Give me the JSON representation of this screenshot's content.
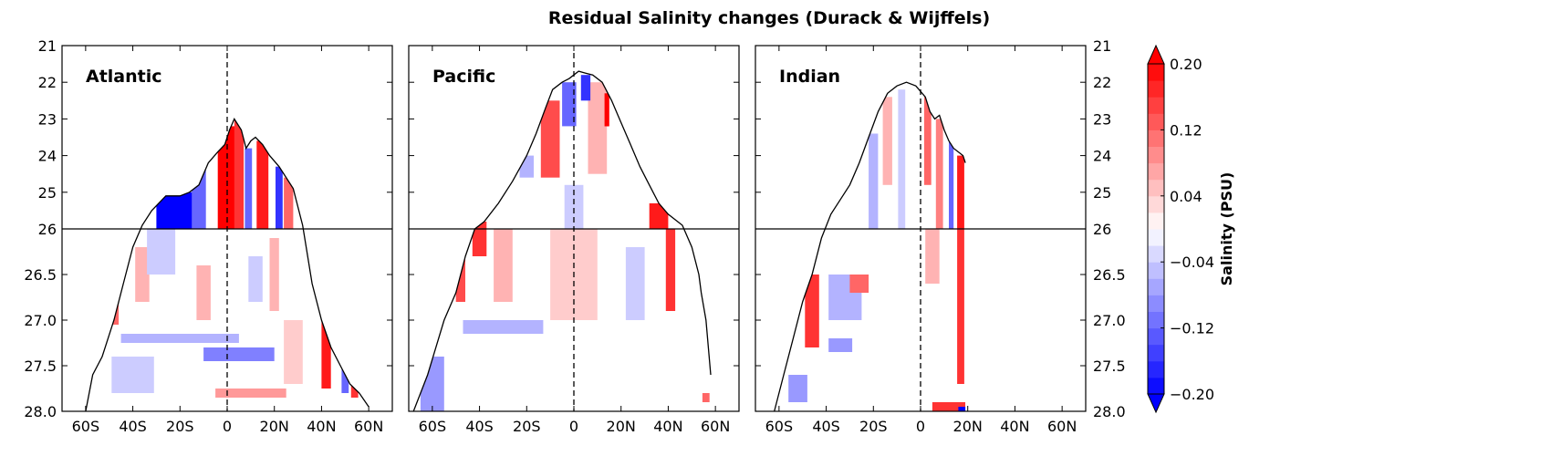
{
  "chart_data": {
    "type": "heatmap",
    "title": "Residual Salinity changes (Durack & Wijffels)",
    "x_ticks": [
      "60S",
      "40S",
      "20S",
      "0",
      "20N",
      "40N",
      "60N"
    ],
    "x_tick_values": [
      -60,
      -40,
      -20,
      0,
      20,
      40,
      60
    ],
    "xlim": [
      -70,
      70
    ],
    "y_ticks_upper": [
      "21",
      "22",
      "23",
      "24",
      "25",
      "26"
    ],
    "y_tick_values_upper": [
      21,
      22,
      23,
      24,
      25,
      26
    ],
    "y_ticks_lower": [
      "26.5",
      "27.0",
      "27.5",
      "28.0"
    ],
    "y_tick_values_lower": [
      26.5,
      27.0,
      27.5,
      28.0
    ],
    "ylim_upper": [
      21,
      26
    ],
    "ylim_lower": [
      26,
      28
    ],
    "dashed_vertical_line_x": 0,
    "solid_horizontal_line_y": 26,
    "colorbar": {
      "label": "Salinity (PSU)",
      "range": [
        -0.2,
        0.2
      ],
      "step": 0.02,
      "ticks": [
        "0.20",
        "0.12",
        "0.04",
        "−0.04",
        "−0.12",
        "−0.20"
      ],
      "tick_values": [
        0.2,
        0.12,
        0.04,
        -0.04,
        -0.12,
        -0.2
      ],
      "extend": "both",
      "colormap": "bwr",
      "high_color": "#ff0000",
      "low_color": "#0000ff",
      "mid_color": "#ffffff"
    },
    "panels": [
      {
        "name": "Atlantic",
        "outcrop": [
          [
            -60,
            28.0
          ],
          [
            -57,
            27.6
          ],
          [
            -53,
            27.4
          ],
          [
            -48,
            27.0
          ],
          [
            -44,
            26.6
          ],
          [
            -40,
            26.2
          ],
          [
            -36,
            25.9
          ],
          [
            -32,
            25.5
          ],
          [
            -26,
            25.1
          ],
          [
            -20,
            25.1
          ],
          [
            -16,
            25.0
          ],
          [
            -12,
            24.8
          ],
          [
            -8,
            24.2
          ],
          [
            -4,
            23.9
          ],
          [
            -1,
            23.7
          ],
          [
            1,
            23.3
          ],
          [
            3,
            23.0
          ],
          [
            6,
            23.3
          ],
          [
            8,
            23.8
          ],
          [
            10,
            23.6
          ],
          [
            12,
            23.5
          ],
          [
            15,
            23.7
          ],
          [
            18,
            24.0
          ],
          [
            22,
            24.3
          ],
          [
            28,
            24.9
          ],
          [
            32,
            25.9
          ],
          [
            36,
            26.6
          ],
          [
            40,
            27.0
          ],
          [
            44,
            27.3
          ],
          [
            48,
            27.5
          ],
          [
            52,
            27.7
          ],
          [
            56,
            27.8
          ],
          [
            60,
            27.95
          ]
        ],
        "anomalies": [
          {
            "x": -22,
            "y1": 25.0,
            "y2": 26.0,
            "w": 16,
            "v": -0.2
          },
          {
            "x": -12,
            "y1": 24.2,
            "y2": 26.0,
            "w": 6,
            "v": -0.12
          },
          {
            "x": 0,
            "y1": 23.2,
            "y2": 26.0,
            "w": 8,
            "v": 0.2
          },
          {
            "x": 5,
            "y1": 23.0,
            "y2": 26.0,
            "w": 4,
            "v": 0.16
          },
          {
            "x": 9,
            "y1": 23.8,
            "y2": 26.0,
            "w": 3,
            "v": -0.12
          },
          {
            "x": 15,
            "y1": 23.6,
            "y2": 26.0,
            "w": 5,
            "v": 0.18
          },
          {
            "x": 22,
            "y1": 24.3,
            "y2": 26.0,
            "w": 3,
            "v": -0.16
          },
          {
            "x": 26,
            "y1": 24.6,
            "y2": 26.0,
            "w": 4,
            "v": 0.12
          },
          {
            "x": -50,
            "y1": 26.7,
            "y2": 27.05,
            "w": 8,
            "v": 0.12
          },
          {
            "x": -36,
            "y1": 26.2,
            "y2": 26.8,
            "w": 6,
            "v": 0.06
          },
          {
            "x": -28,
            "y1": 26.0,
            "y2": 26.5,
            "w": 12,
            "v": -0.04
          },
          {
            "x": -10,
            "y1": 26.4,
            "y2": 27.0,
            "w": 6,
            "v": 0.06
          },
          {
            "x": 12,
            "y1": 26.3,
            "y2": 26.8,
            "w": 6,
            "v": -0.04
          },
          {
            "x": 20,
            "y1": 26.1,
            "y2": 26.9,
            "w": 4,
            "v": 0.06
          },
          {
            "x": 42,
            "y1": 27.0,
            "y2": 27.75,
            "w": 4,
            "v": 0.18
          },
          {
            "x": 50,
            "y1": 27.3,
            "y2": 27.8,
            "w": 3,
            "v": -0.12
          },
          {
            "x": 54,
            "y1": 27.5,
            "y2": 27.85,
            "w": 3,
            "v": 0.16
          },
          {
            "x": -20,
            "y1": 27.15,
            "y2": 27.25,
            "w": 50,
            "v": -0.06
          },
          {
            "x": 5,
            "y1": 27.3,
            "y2": 27.45,
            "w": 30,
            "v": -0.1
          },
          {
            "x": 10,
            "y1": 27.75,
            "y2": 27.85,
            "w": 30,
            "v": 0.08
          },
          {
            "x": -40,
            "y1": 27.4,
            "y2": 27.8,
            "w": 18,
            "v": -0.04
          },
          {
            "x": 28,
            "y1": 27.0,
            "y2": 27.7,
            "w": 8,
            "v": 0.04
          }
        ]
      },
      {
        "name": "Pacific",
        "outcrop": [
          [
            -68,
            28.0
          ],
          [
            -62,
            27.6
          ],
          [
            -55,
            27.0
          ],
          [
            -50,
            26.7
          ],
          [
            -46,
            26.3
          ],
          [
            -42,
            26.0
          ],
          [
            -38,
            25.8
          ],
          [
            -32,
            25.3
          ],
          [
            -26,
            24.7
          ],
          [
            -20,
            24.0
          ],
          [
            -16,
            23.4
          ],
          [
            -12,
            22.7
          ],
          [
            -9,
            22.2
          ],
          [
            -5,
            22.0
          ],
          [
            -2,
            21.9
          ],
          [
            2,
            21.7
          ],
          [
            5,
            21.75
          ],
          [
            8,
            21.8
          ],
          [
            12,
            22.0
          ],
          [
            16,
            22.5
          ],
          [
            20,
            23.1
          ],
          [
            24,
            23.7
          ],
          [
            28,
            24.3
          ],
          [
            32,
            24.8
          ],
          [
            36,
            25.3
          ],
          [
            40,
            25.6
          ],
          [
            46,
            25.9
          ],
          [
            50,
            26.2
          ],
          [
            53,
            26.5
          ],
          [
            54,
            26.7
          ],
          [
            56,
            27.0
          ],
          [
            57,
            27.3
          ],
          [
            58,
            27.6
          ]
        ],
        "end_x": 58,
        "anomalies": [
          {
            "x": -10,
            "y1": 22.5,
            "y2": 24.6,
            "w": 8,
            "v": 0.14
          },
          {
            "x": -2,
            "y1": 22.0,
            "y2": 23.2,
            "w": 6,
            "v": -0.12
          },
          {
            "x": 10,
            "y1": 22.0,
            "y2": 24.5,
            "w": 8,
            "v": 0.06
          },
          {
            "x": 5,
            "y1": 21.8,
            "y2": 22.5,
            "w": 4,
            "v": -0.16
          },
          {
            "x": 14,
            "y1": 22.3,
            "y2": 23.2,
            "w": 2,
            "v": 0.2
          },
          {
            "x": -20,
            "y1": 24.0,
            "y2": 24.6,
            "w": 6,
            "v": -0.06
          },
          {
            "x": 0,
            "y1": 24.8,
            "y2": 26.0,
            "w": 8,
            "v": -0.04
          },
          {
            "x": 36,
            "y1": 25.3,
            "y2": 26.0,
            "w": 8,
            "v": 0.18
          },
          {
            "x": 41,
            "y1": 26.0,
            "y2": 26.9,
            "w": 4,
            "v": 0.16
          },
          {
            "x": -40,
            "y1": 25.8,
            "y2": 26.3,
            "w": 6,
            "v": 0.16
          },
          {
            "x": -48,
            "y1": 26.3,
            "y2": 26.8,
            "w": 4,
            "v": 0.14
          },
          {
            "x": -30,
            "y1": 26.0,
            "y2": 26.8,
            "w": 8,
            "v": 0.06
          },
          {
            "x": -30,
            "y1": 27.0,
            "y2": 27.15,
            "w": 34,
            "v": -0.06
          },
          {
            "x": 0,
            "y1": 26.0,
            "y2": 27.0,
            "w": 20,
            "v": 0.04
          },
          {
            "x": 26,
            "y1": 26.2,
            "y2": 27.0,
            "w": 8,
            "v": -0.04
          },
          {
            "x": -60,
            "y1": 27.4,
            "y2": 28.0,
            "w": 10,
            "v": -0.08
          },
          {
            "x": 56,
            "y1": 27.8,
            "y2": 27.9,
            "w": 3,
            "v": 0.12
          }
        ]
      },
      {
        "name": "Indian",
        "outcrop": [
          [
            -62,
            28.0
          ],
          [
            -58,
            27.6
          ],
          [
            -54,
            27.2
          ],
          [
            -50,
            26.8
          ],
          [
            -46,
            26.5
          ],
          [
            -42,
            26.1
          ],
          [
            -38,
            25.6
          ],
          [
            -34,
            25.2
          ],
          [
            -30,
            24.8
          ],
          [
            -26,
            24.2
          ],
          [
            -22,
            23.5
          ],
          [
            -18,
            22.8
          ],
          [
            -14,
            22.3
          ],
          [
            -10,
            22.1
          ],
          [
            -6,
            22.0
          ],
          [
            -2,
            22.1
          ],
          [
            2,
            22.4
          ],
          [
            4,
            22.8
          ],
          [
            6,
            23.0
          ],
          [
            8,
            22.9
          ],
          [
            10,
            23.3
          ],
          [
            12,
            23.6
          ],
          [
            14,
            23.8
          ],
          [
            16,
            23.9
          ],
          [
            18,
            24.0
          ],
          [
            19,
            24.2
          ]
        ],
        "end_x": 19,
        "anomalies": [
          {
            "x": -20,
            "y1": 23.4,
            "y2": 26.0,
            "w": 4,
            "v": -0.06
          },
          {
            "x": -14,
            "y1": 22.4,
            "y2": 24.8,
            "w": 4,
            "v": 0.06
          },
          {
            "x": -8,
            "y1": 22.2,
            "y2": 26.0,
            "w": 3,
            "v": -0.04
          },
          {
            "x": 3,
            "y1": 22.4,
            "y2": 24.8,
            "w": 3,
            "v": 0.12
          },
          {
            "x": 8,
            "y1": 23.0,
            "y2": 26.0,
            "w": 3,
            "v": 0.1
          },
          {
            "x": 13,
            "y1": 23.6,
            "y2": 26.0,
            "w": 2,
            "v": -0.12
          },
          {
            "x": 17,
            "y1": 24.0,
            "y2": 26.0,
            "w": 3,
            "v": 0.18
          },
          {
            "x": 17,
            "y1": 26.0,
            "y2": 27.7,
            "w": 3,
            "v": 0.16
          },
          {
            "x": -46,
            "y1": 26.5,
            "y2": 27.3,
            "w": 6,
            "v": 0.16
          },
          {
            "x": -32,
            "y1": 26.5,
            "y2": 27.0,
            "w": 14,
            "v": -0.06
          },
          {
            "x": -26,
            "y1": 26.5,
            "y2": 26.7,
            "w": 8,
            "v": 0.12
          },
          {
            "x": 5,
            "y1": 26.0,
            "y2": 26.6,
            "w": 6,
            "v": 0.06
          },
          {
            "x": -34,
            "y1": 27.2,
            "y2": 27.35,
            "w": 10,
            "v": -0.08
          },
          {
            "x": -52,
            "y1": 27.6,
            "y2": 27.9,
            "w": 8,
            "v": -0.08
          },
          {
            "x": 12,
            "y1": 27.9,
            "y2": 28.0,
            "w": 14,
            "v": 0.16
          },
          {
            "x": 18,
            "y1": 27.95,
            "y2": 28.0,
            "w": 4,
            "v": -0.2
          }
        ]
      }
    ]
  }
}
